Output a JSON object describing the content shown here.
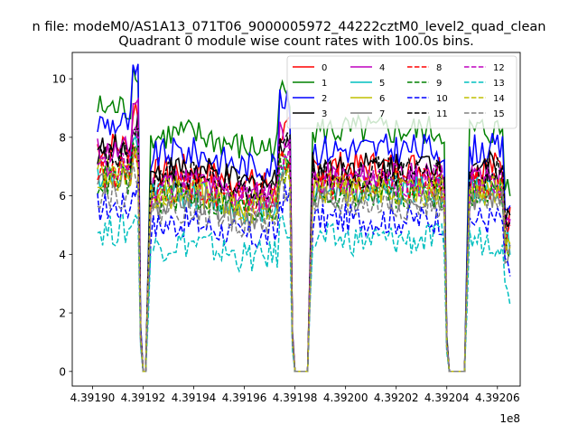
{
  "chart_data": {
    "type": "line",
    "suptitle": "n file: modeM0/AS1A13_071T06_9000005972_44222cztM0_level2_quad_clean",
    "title": "Quadrant 0 module wise count rates with 100.0s bins.",
    "xlabel": "",
    "ylabel": "",
    "x_offset_label": "1e8",
    "xlim": [
      439189200,
      439206900
    ],
    "ylim": [
      -0.5,
      10.9
    ],
    "xticks": [
      439190000,
      439192000,
      439194000,
      439196000,
      439198000,
      439200000,
      439202000,
      439204000,
      439206000
    ],
    "xtick_labels": [
      "4.39190",
      "4.39192",
      "4.39194",
      "4.39196",
      "4.39198",
      "4.39200",
      "4.39202",
      "4.39204",
      "4.39206"
    ],
    "yticks": [
      0,
      2,
      4,
      6,
      8,
      10
    ],
    "ytick_labels": [
      "0",
      "2",
      "4",
      "6",
      "8",
      "10"
    ],
    "grid": false,
    "legend_placement": "top-right",
    "gaps": [
      [
        439191950,
        439192150
      ],
      [
        439198000,
        439198500
      ],
      [
        439204100,
        439204700
      ]
    ],
    "series": [
      {
        "name": "0",
        "color": "#ff0000",
        "dash": "solid",
        "level": 7.0,
        "peak": 9.0
      },
      {
        "name": "1",
        "color": "#008000",
        "dash": "solid",
        "level": 8.2,
        "peak": 10.4
      },
      {
        "name": "2",
        "color": "#0000ff",
        "dash": "solid",
        "level": 7.6,
        "peak": 10.1
      },
      {
        "name": "3",
        "color": "#000000",
        "dash": "solid",
        "level": 7.0,
        "peak": 8.6
      },
      {
        "name": "4",
        "color": "#bf00bf",
        "dash": "solid",
        "level": 6.6,
        "peak": 9.2
      },
      {
        "name": "5",
        "color": "#00bfbf",
        "dash": "solid",
        "level": 6.2,
        "peak": 7.6
      },
      {
        "name": "6",
        "color": "#bfbf00",
        "dash": "solid",
        "level": 6.3,
        "peak": 7.8
      },
      {
        "name": "7",
        "color": "#808080",
        "dash": "solid",
        "level": 6.0,
        "peak": 7.4
      },
      {
        "name": "8",
        "color": "#ff0000",
        "dash": "dashed",
        "level": 6.4,
        "peak": 7.6
      },
      {
        "name": "9",
        "color": "#008000",
        "dash": "dashed",
        "level": 6.1,
        "peak": 7.3
      },
      {
        "name": "10",
        "color": "#0000ff",
        "dash": "dashed",
        "level": 5.2,
        "peak": 6.4
      },
      {
        "name": "11",
        "color": "#000000",
        "dash": "dashed",
        "level": 6.8,
        "peak": 8.2
      },
      {
        "name": "12",
        "color": "#bf00bf",
        "dash": "dashed",
        "level": 6.5,
        "peak": 7.8
      },
      {
        "name": "13",
        "color": "#00bfbf",
        "dash": "dashed",
        "level": 4.5,
        "peak": 5.4
      },
      {
        "name": "14",
        "color": "#bfbf00",
        "dash": "dashed",
        "level": 6.2,
        "peak": 7.2
      },
      {
        "name": "15",
        "color": "#808080",
        "dash": "dashed",
        "level": 5.7,
        "peak": 6.8
      }
    ]
  }
}
